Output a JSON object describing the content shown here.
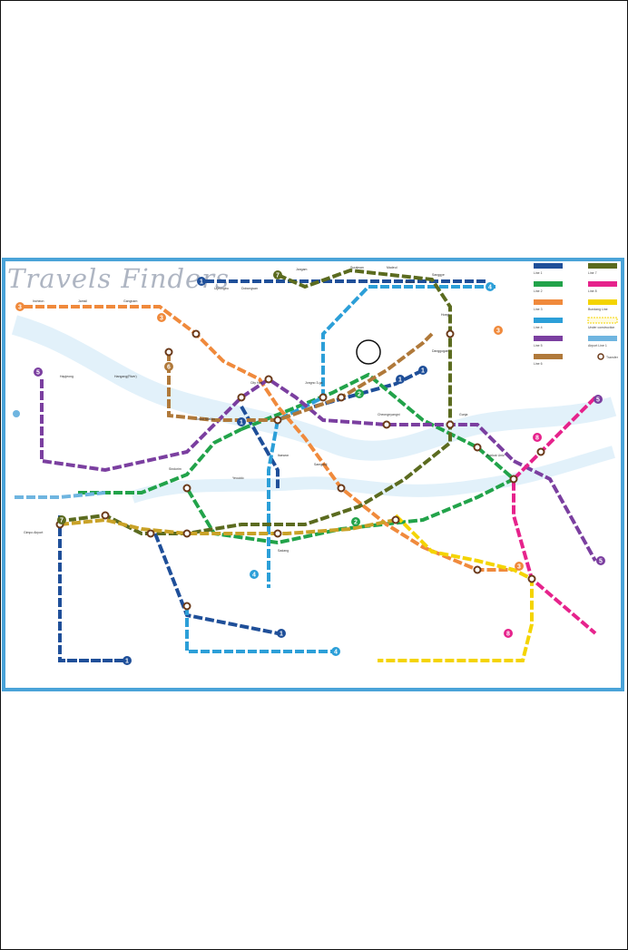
{
  "watermark": "Travels Finders",
  "lines": [
    {
      "id": "1",
      "name": "Line 1",
      "color": "#1f4f99"
    },
    {
      "id": "2",
      "name": "Line 2",
      "color": "#22a34a"
    },
    {
      "id": "3",
      "name": "Line 3",
      "color": "#f08a3c"
    },
    {
      "id": "4",
      "name": "Line 4",
      "color": "#2c9fd8"
    },
    {
      "id": "5",
      "name": "Line 5",
      "color": "#7b3fa0"
    },
    {
      "id": "6",
      "name": "Line 6",
      "color": "#b0793a"
    },
    {
      "id": "7",
      "name": "Line 7",
      "color": "#5b6b1f"
    },
    {
      "id": "8",
      "name": "Line 8",
      "color": "#e6238c"
    },
    {
      "id": "9",
      "name": "Line 9",
      "color": "#c9a227"
    },
    {
      "id": "B",
      "name": "Bundang Line",
      "color": "#f4d400"
    },
    {
      "id": "A",
      "name": "Airport Rail Line",
      "color": "#6fb5e0"
    },
    {
      "id": "U",
      "name": "Under construction",
      "color": "#f4d400"
    }
  ],
  "legend": {
    "items": [
      "Line 1",
      "Line 7",
      "Line 2",
      "Line 8",
      "Line 3",
      "Bundang Line",
      "Line 4",
      "Under construction",
      "Line 5",
      "Airport Line 1",
      "Line 6"
    ],
    "transfer": "Transfer"
  },
  "stations_top": [
    "Uijeongbu",
    "Dobongsan",
    "Jangam",
    "Suraksan",
    "Madeul",
    "Nowon",
    "Sanggye",
    "Danggogae",
    "Hoegi",
    "Cheongnyangni",
    "Gunja",
    "Konkuk Univ.",
    "Jamsil",
    "Gangnam",
    "Seoul Station",
    "City Hall",
    "Jongno 3-ga",
    "Sindorim",
    "Yeouido",
    "Hapjeong",
    "Itaewon",
    "Samgakji",
    "Sadang",
    "Gimpo Airport",
    "Incheon"
  ],
  "badges": [
    "1",
    "2",
    "3",
    "4",
    "5",
    "6",
    "7",
    "8",
    "9"
  ],
  "labels": {
    "seoul_station": "Seoul Station",
    "han_river": "Hangang(River)",
    "incheon": "Incheon Line"
  }
}
